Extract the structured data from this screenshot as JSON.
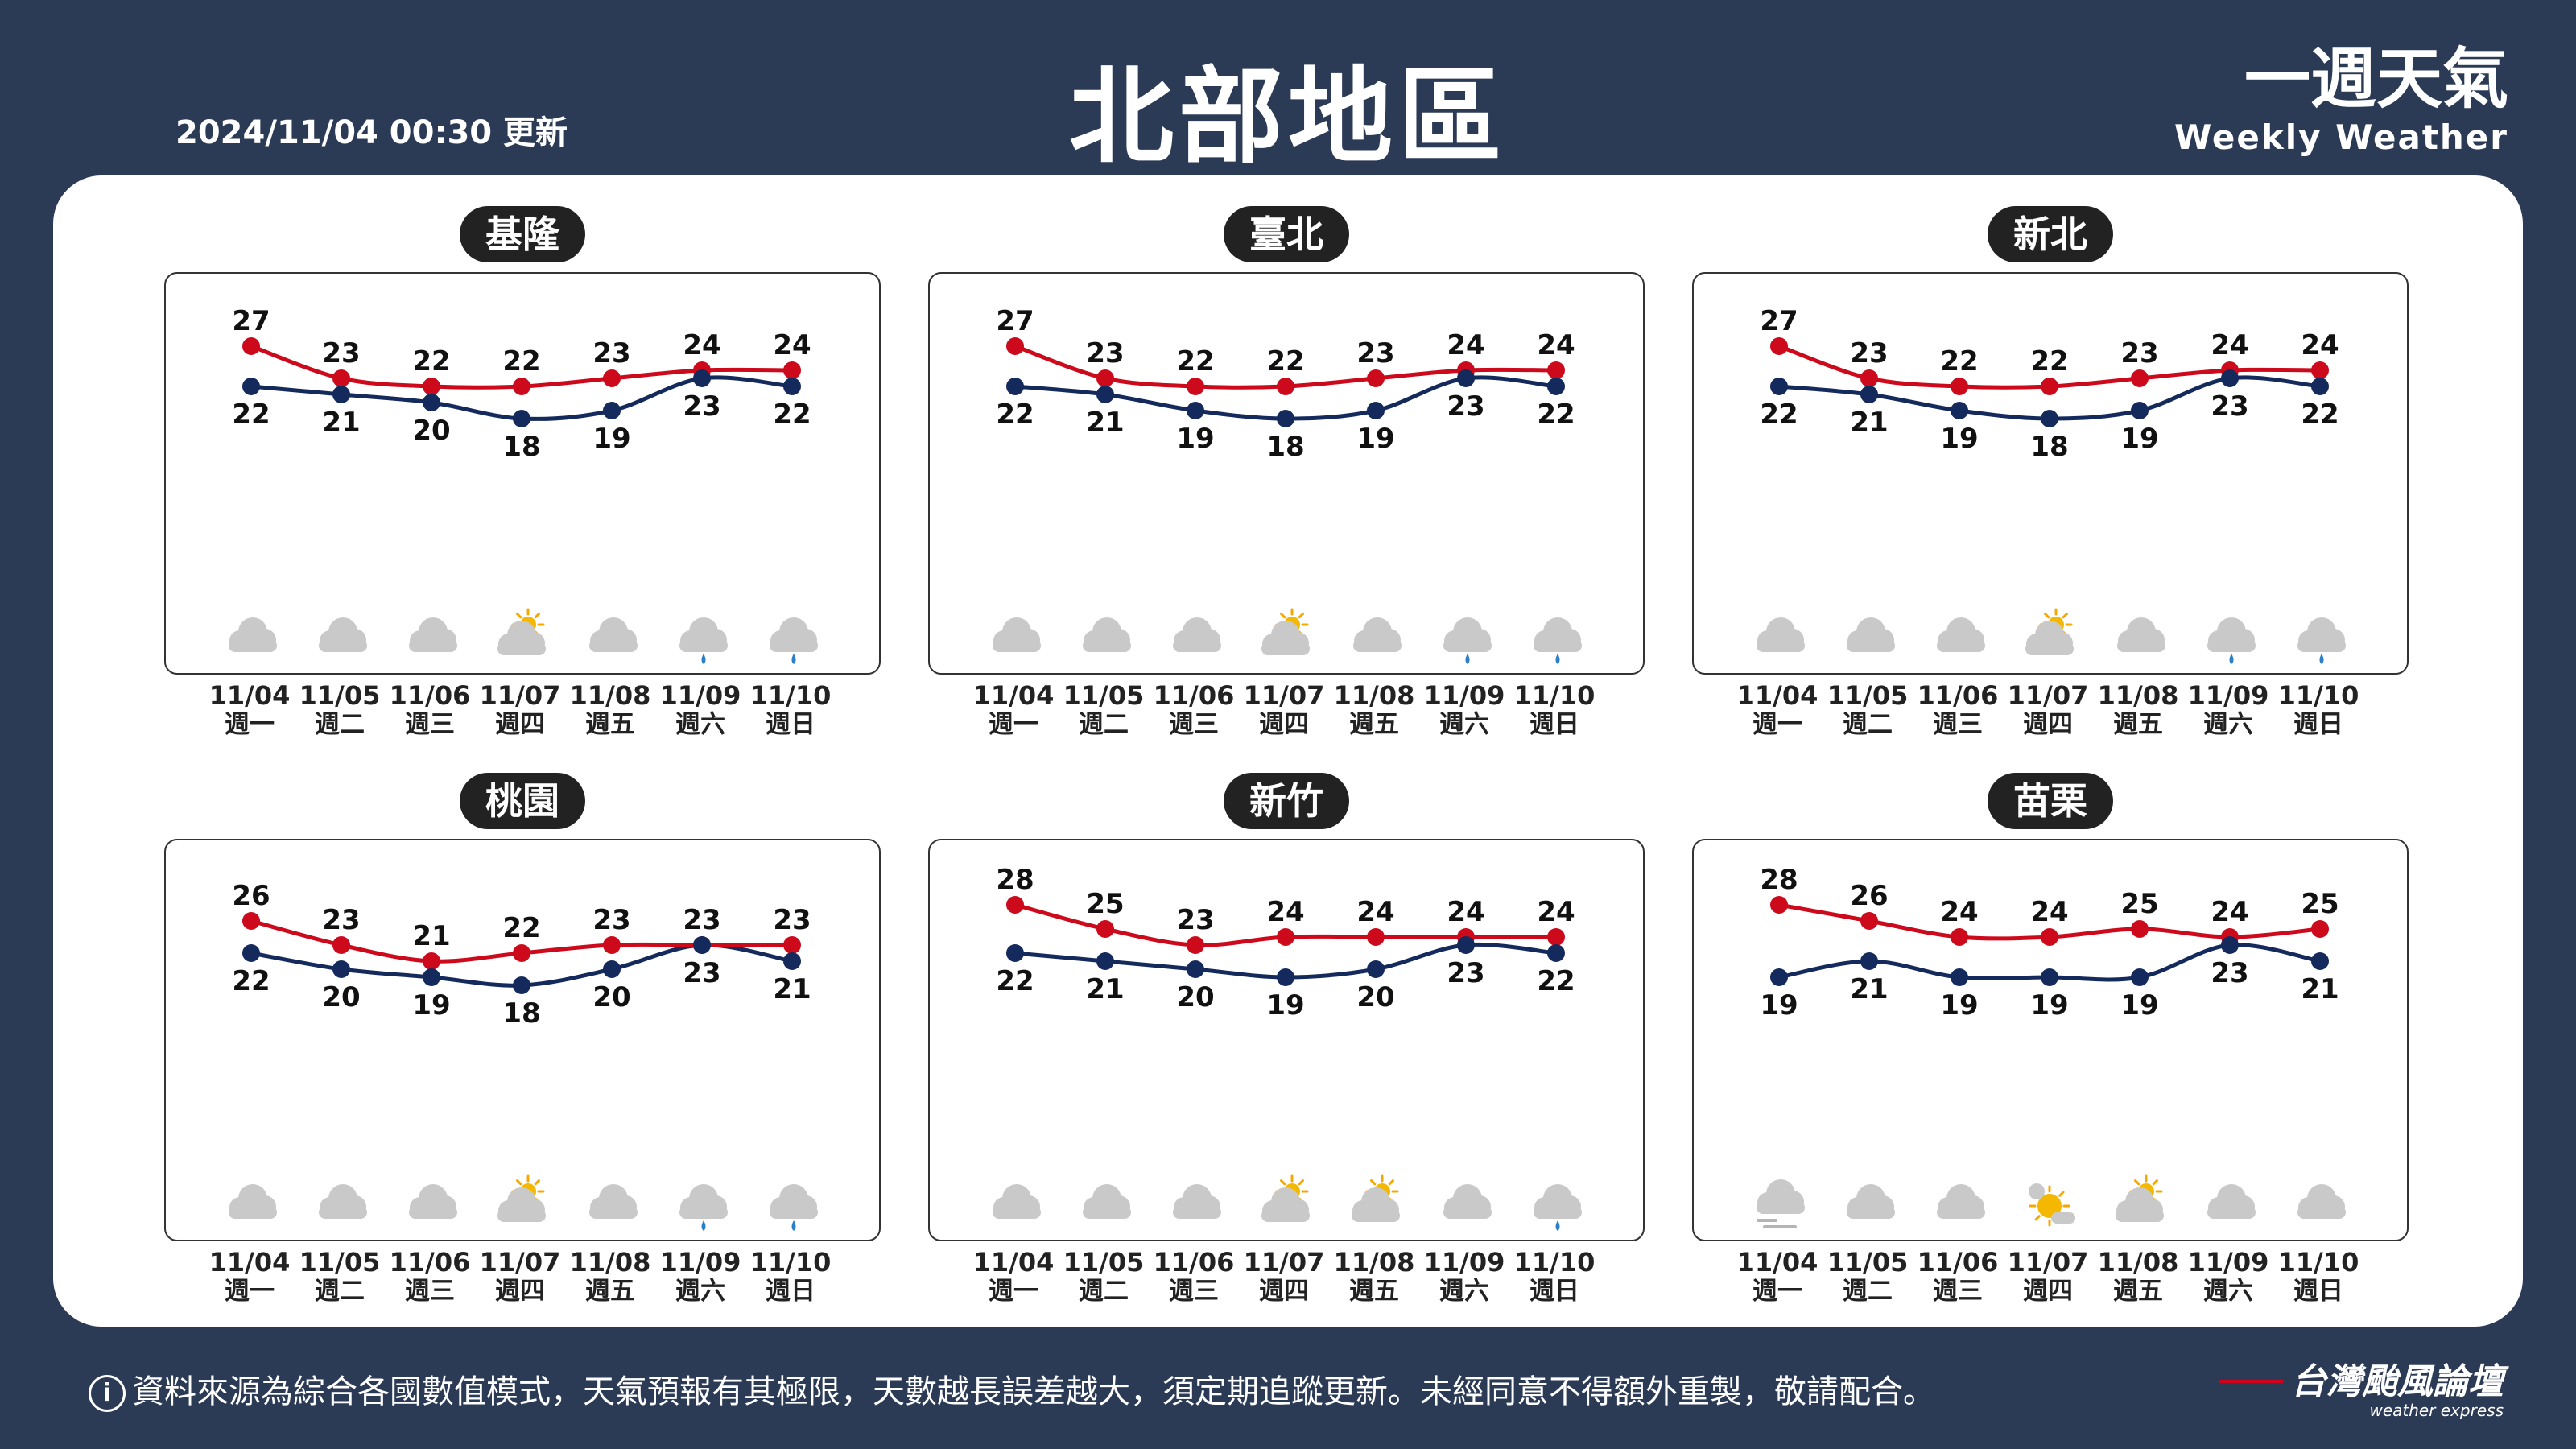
{
  "header": {
    "updated": "2024/11/04 00:30 更新",
    "title": "北部地區",
    "brand_zh": "一週天氣",
    "brand_en": "Weekly Weather"
  },
  "footer": {
    "notice": "資料來源為綜合各國數值模式，天氣預報有其極限，天數越長誤差越大，須定期追蹤更新。未經同意不得額外重製，敬請配合。",
    "info_icon": "i",
    "brand_zh": "台灣颱風論壇",
    "brand_en": "weather express"
  },
  "colors": {
    "high": "#cc0a1c",
    "low": "#152a5c",
    "background": "#2b3a55"
  },
  "chart_data": [
    {
      "type": "line",
      "title": "基隆",
      "categories": [
        "11/04",
        "11/05",
        "11/06",
        "11/07",
        "11/08",
        "11/09",
        "11/10"
      ],
      "weekdays": [
        "週一",
        "週二",
        "週三",
        "週四",
        "週五",
        "週六",
        "週日"
      ],
      "series": [
        {
          "values": [
            27,
            23,
            22,
            22,
            23,
            24,
            24
          ]
        },
        {
          "values": [
            22,
            21,
            20,
            18,
            19,
            23,
            22
          ]
        }
      ],
      "icons": [
        "cloudy",
        "cloudy",
        "cloudy",
        "partly-sunny",
        "cloudy",
        "rain",
        "rain"
      ]
    },
    {
      "type": "line",
      "title": "臺北",
      "categories": [
        "11/04",
        "11/05",
        "11/06",
        "11/07",
        "11/08",
        "11/09",
        "11/10"
      ],
      "weekdays": [
        "週一",
        "週二",
        "週三",
        "週四",
        "週五",
        "週六",
        "週日"
      ],
      "series": [
        {
          "values": [
            27,
            23,
            22,
            22,
            23,
            24,
            24
          ]
        },
        {
          "values": [
            22,
            21,
            19,
            18,
            19,
            23,
            22
          ]
        }
      ],
      "icons": [
        "cloudy",
        "cloudy",
        "cloudy",
        "partly-sunny",
        "cloudy",
        "rain",
        "rain"
      ]
    },
    {
      "type": "line",
      "title": "新北",
      "categories": [
        "11/04",
        "11/05",
        "11/06",
        "11/07",
        "11/08",
        "11/09",
        "11/10"
      ],
      "weekdays": [
        "週一",
        "週二",
        "週三",
        "週四",
        "週五",
        "週六",
        "週日"
      ],
      "series": [
        {
          "values": [
            27,
            23,
            22,
            22,
            23,
            24,
            24
          ]
        },
        {
          "values": [
            22,
            21,
            19,
            18,
            19,
            23,
            22
          ]
        }
      ],
      "icons": [
        "cloudy",
        "cloudy",
        "cloudy",
        "partly-sunny",
        "cloudy",
        "rain",
        "rain"
      ]
    },
    {
      "type": "line",
      "title": "桃園",
      "categories": [
        "11/04",
        "11/05",
        "11/06",
        "11/07",
        "11/08",
        "11/09",
        "11/10"
      ],
      "weekdays": [
        "週一",
        "週二",
        "週三",
        "週四",
        "週五",
        "週六",
        "週日"
      ],
      "series": [
        {
          "values": [
            26,
            23,
            21,
            22,
            23,
            23,
            23
          ]
        },
        {
          "values": [
            22,
            20,
            19,
            18,
            20,
            23,
            21
          ]
        }
      ],
      "icons": [
        "cloudy",
        "cloudy",
        "cloudy",
        "partly-sunny",
        "cloudy",
        "rain",
        "rain"
      ]
    },
    {
      "type": "line",
      "title": "新竹",
      "categories": [
        "11/04",
        "11/05",
        "11/06",
        "11/07",
        "11/08",
        "11/09",
        "11/10"
      ],
      "weekdays": [
        "週一",
        "週二",
        "週三",
        "週四",
        "週五",
        "週六",
        "週日"
      ],
      "series": [
        {
          "values": [
            28,
            25,
            23,
            24,
            24,
            24,
            24
          ]
        },
        {
          "values": [
            22,
            21,
            20,
            19,
            20,
            23,
            22
          ]
        }
      ],
      "icons": [
        "cloudy",
        "cloudy",
        "cloudy",
        "partly-sunny",
        "partly-sunny",
        "cloudy",
        "rain"
      ]
    },
    {
      "type": "line",
      "title": "苗栗",
      "categories": [
        "11/04",
        "11/05",
        "11/06",
        "11/07",
        "11/08",
        "11/09",
        "11/10"
      ],
      "weekdays": [
        "週一",
        "週二",
        "週三",
        "週四",
        "週五",
        "週六",
        "週日"
      ],
      "series": [
        {
          "values": [
            28,
            26,
            24,
            24,
            25,
            24,
            25
          ]
        },
        {
          "values": [
            19,
            21,
            19,
            19,
            19,
            23,
            21
          ]
        }
      ],
      "icons": [
        "fog",
        "cloudy",
        "cloudy",
        "sunny-cloud",
        "partly-sunny",
        "cloudy",
        "cloudy"
      ]
    }
  ]
}
